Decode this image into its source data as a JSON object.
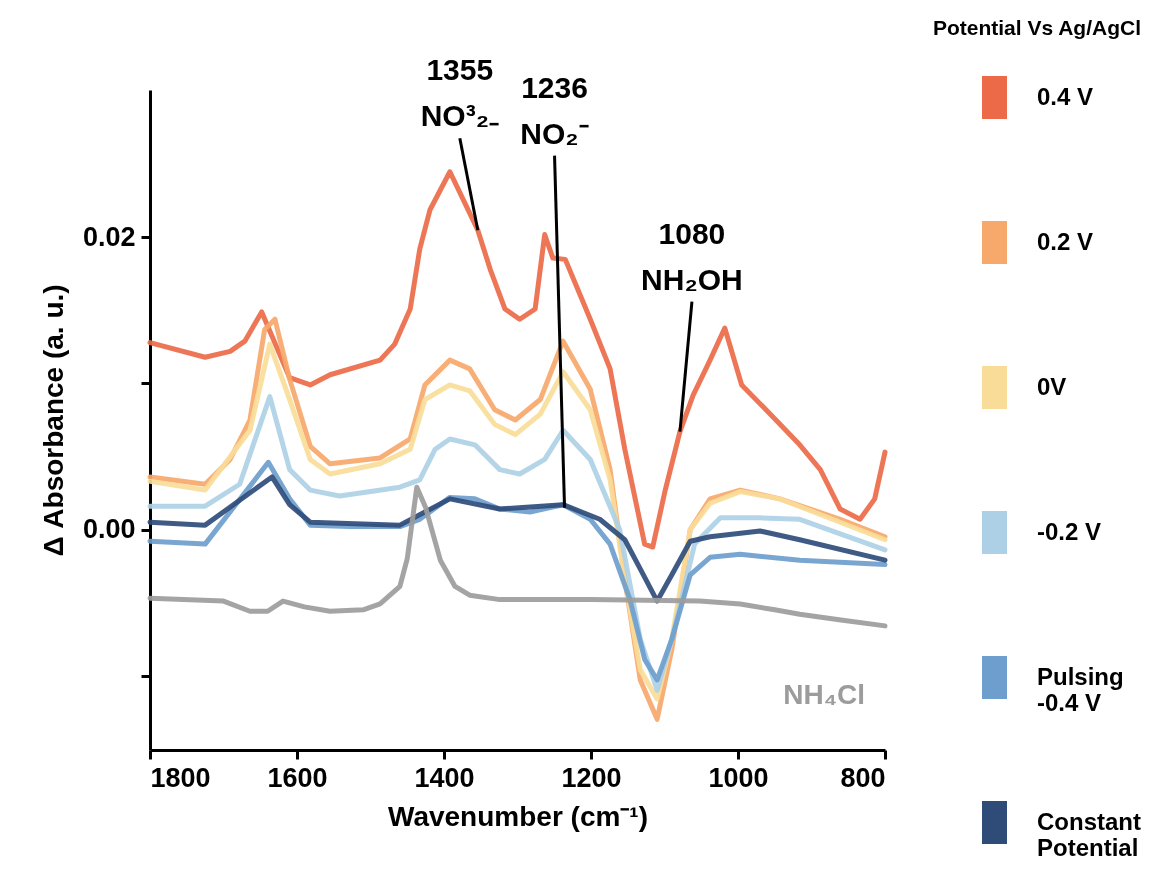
{
  "chart_data": {
    "type": "line",
    "xlabel": "Wavenumber (cm⁻¹)",
    "ylabel": "Δ Absorbance (a. u.)",
    "legend_title": "Potential Vs Ag/AgCl",
    "legend": "right",
    "grid": false,
    "xlim": [
      1800,
      800
    ],
    "xticks": [
      1800,
      1600,
      1400,
      1200,
      1000,
      800
    ],
    "ylim": [
      -0.0151,
      0.0301
    ],
    "yticks": [
      {
        "value": -0.01,
        "label": null
      },
      {
        "value": 0,
        "label": "0.00"
      },
      {
        "value": 0.01,
        "label": null
      },
      {
        "value": 0.02,
        "label": "0.02"
      }
    ],
    "annotations": [
      {
        "text": "1355 NO³₂₋",
        "x": 1354,
        "y": 0.0205
      },
      {
        "text": "1236 NO₂⁻",
        "x": 1236,
        "y": 0.0015
      },
      {
        "text": "1080 NH₂OH",
        "x": 1079,
        "y": 0.0067
      }
    ],
    "series": [
      {
        "name": "0.4 V",
        "color": "#ec6a48",
        "x": [
          1800,
          1725,
          1691,
          1671,
          1648,
          1610,
          1582,
          1555,
          1487,
          1467,
          1446,
          1433,
          1419,
          1392,
          1354,
          1337,
          1317,
          1297,
          1276,
          1263,
          1252,
          1235,
          1201,
          1174,
          1154,
          1127,
          1116,
          1099,
          1079,
          1061,
          1038,
          1018,
          995,
          956,
          916,
          888,
          861,
          834,
          814,
          800
        ],
        "values": [
          0.0128,
          0.0118,
          0.0122,
          0.0129,
          0.0149,
          0.0104,
          0.0099,
          0.0106,
          0.0116,
          0.0127,
          0.0151,
          0.0192,
          0.0219,
          0.0245,
          0.0205,
          0.0178,
          0.0151,
          0.0144,
          0.0151,
          0.0202,
          0.0186,
          0.0185,
          0.0144,
          0.011,
          0.0055,
          -0.001,
          -0.0012,
          0.0027,
          0.0067,
          0.0092,
          0.0116,
          0.0138,
          0.0099,
          0.0079,
          0.0058,
          0.0041,
          0.0014,
          0.0007,
          0.0021,
          0.0053
        ]
      },
      {
        "name": "0.2 V",
        "color": "#f7a86b",
        "x": [
          1800,
          1725,
          1691,
          1664,
          1644,
          1630,
          1610,
          1582,
          1555,
          1487,
          1446,
          1426,
          1392,
          1365,
          1331,
          1303,
          1269,
          1238,
          1201,
          1174,
          1154,
          1133,
          1110,
          1090,
          1065,
          1038,
          997,
          943,
          861,
          800
        ],
        "values": [
          0.0036,
          0.0031,
          0.0048,
          0.0075,
          0.0137,
          0.0144,
          0.0103,
          0.0057,
          0.0045,
          0.0049,
          0.0062,
          0.0099,
          0.0116,
          0.011,
          0.0082,
          0.0075,
          0.0089,
          0.0129,
          0.0096,
          0.0041,
          -0.0034,
          -0.0103,
          -0.013,
          -0.0082,
          0.0,
          0.0021,
          0.0027,
          0.0021,
          0.0007,
          -0.0005
        ]
      },
      {
        "name": "0V",
        "color": "#f8dc98",
        "x": [
          1800,
          1725,
          1664,
          1637,
          1610,
          1582,
          1555,
          1487,
          1446,
          1426,
          1392,
          1365,
          1331,
          1303,
          1269,
          1238,
          1201,
          1174,
          1154,
          1133,
          1110,
          1090,
          1065,
          1038,
          997,
          943,
          861,
          800
        ],
        "values": [
          0.0033,
          0.0027,
          0.0068,
          0.0127,
          0.0089,
          0.0048,
          0.0038,
          0.0045,
          0.0055,
          0.0089,
          0.0099,
          0.0095,
          0.0072,
          0.0065,
          0.0079,
          0.0108,
          0.0082,
          0.0034,
          -0.0034,
          -0.0096,
          -0.0116,
          -0.0075,
          0.0,
          0.0018,
          0.0026,
          0.0021,
          0.0005,
          -0.0007
        ]
      },
      {
        "name": "-0.2 V",
        "color": "#aed0e6",
        "x": [
          1800,
          1725,
          1678,
          1637,
          1610,
          1582,
          1542,
          1460,
          1433,
          1412,
          1392,
          1358,
          1324,
          1297,
          1263,
          1238,
          1201,
          1161,
          1133,
          1110,
          1090,
          1059,
          1024,
          970,
          916,
          800
        ],
        "values": [
          0.0016,
          0.0016,
          0.0031,
          0.0091,
          0.0041,
          0.0027,
          0.0023,
          0.0029,
          0.0034,
          0.0055,
          0.0062,
          0.0058,
          0.0041,
          0.0038,
          0.0048,
          0.0068,
          0.0048,
          0.0,
          -0.0075,
          -0.011,
          -0.0075,
          -0.001,
          0.0008,
          0.0008,
          0.0007,
          -0.0014
        ]
      },
      {
        "name": "Pulsing -0.4 V",
        "color": "#6e9ecd",
        "x": [
          1800,
          1725,
          1705,
          1639,
          1610,
          1582,
          1528,
          1460,
          1433,
          1392,
          1358,
          1324,
          1283,
          1238,
          1201,
          1174,
          1147,
          1127,
          1110,
          1090,
          1065,
          1038,
          997,
          916,
          800
        ],
        "values": [
          -0.0008,
          -0.001,
          0.0003,
          0.0046,
          0.0021,
          0.0003,
          0.0002,
          0.0002,
          0.0007,
          0.0022,
          0.0021,
          0.0014,
          0.0012,
          0.0017,
          0.0007,
          -0.001,
          -0.0048,
          -0.0089,
          -0.0103,
          -0.0075,
          -0.0031,
          -0.0019,
          -0.0017,
          -0.0021,
          -0.0024
        ]
      },
      {
        "name": "Constant Potential",
        "color": "#2f4c79",
        "x": [
          1800,
          1725,
          1634,
          1610,
          1582,
          1460,
          1392,
          1324,
          1238,
          1188,
          1154,
          1133,
          1110,
          1090,
          1065,
          1038,
          970,
          916,
          800
        ],
        "values": [
          0.0005,
          0.0003,
          0.0036,
          0.0017,
          0.0005,
          0.0003,
          0.0021,
          0.0014,
          0.0017,
          0.0007,
          -0.0007,
          -0.0027,
          -0.0049,
          -0.0031,
          -0.0008,
          -0.0005,
          -0.0001,
          -0.0007,
          -0.0021
        ]
      },
      {
        "name": "NH₄Cl",
        "color": "#9c9c9c",
        "x": [
          1800,
          1700,
          1664,
          1640,
          1619,
          1590,
          1555,
          1510,
          1487,
          1460,
          1450,
          1437,
          1425,
          1405,
          1385,
          1365,
          1324,
          1200,
          1052,
          997,
          950,
          916,
          860,
          800
        ],
        "values": [
          -0.0047,
          -0.0049,
          -0.0056,
          -0.0056,
          -0.0049,
          -0.0053,
          -0.0056,
          -0.0055,
          -0.0051,
          -0.0039,
          -0.002,
          0.0029,
          0.0015,
          -0.0021,
          -0.0039,
          -0.0045,
          -0.0048,
          -0.0048,
          -0.0049,
          -0.0051,
          -0.0055,
          -0.0058,
          -0.0062,
          -0.0066
        ]
      }
    ]
  }
}
